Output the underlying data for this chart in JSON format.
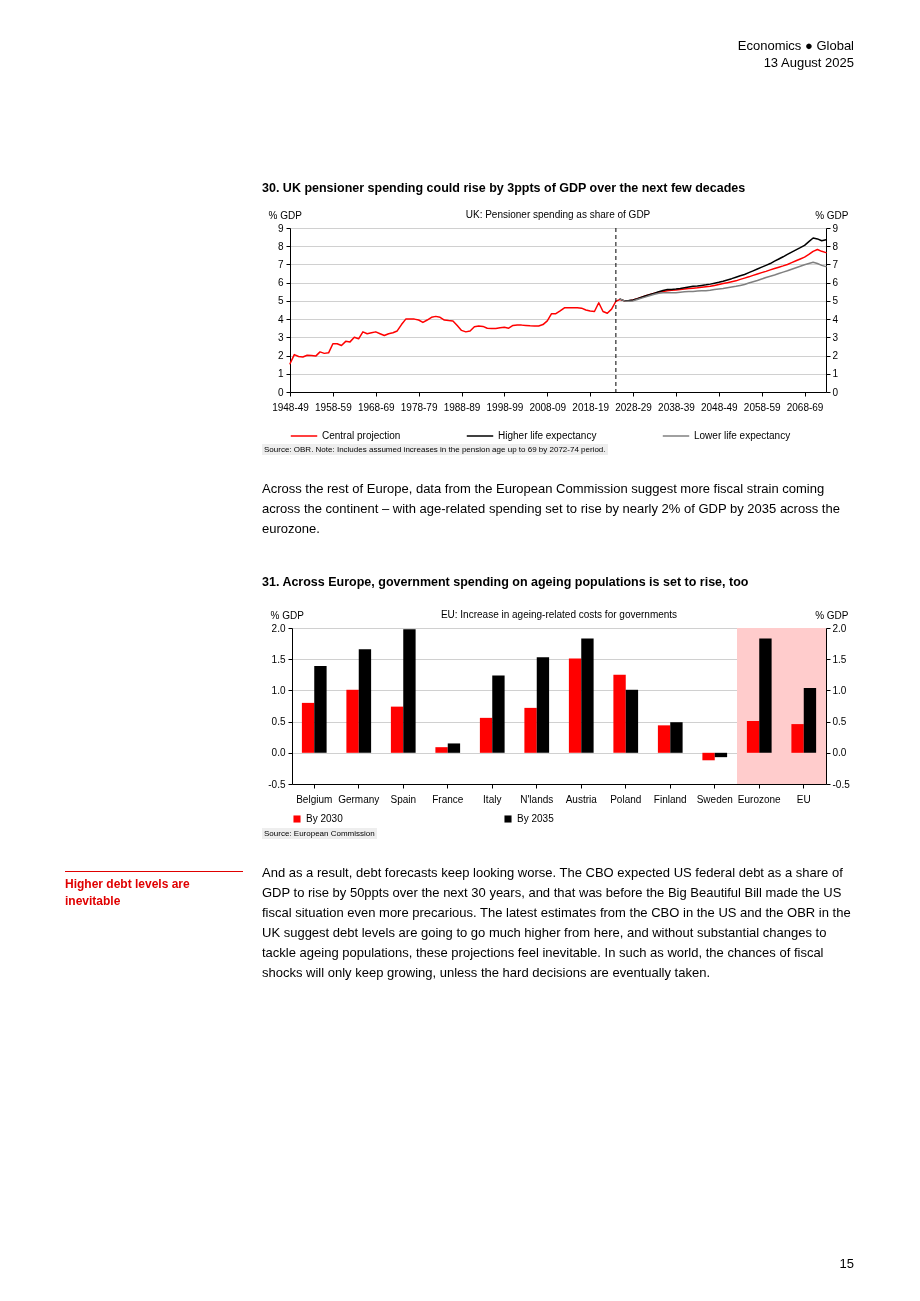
{
  "chart_data": [
    {
      "type": "line",
      "title": "30. UK pensioner spending could rise by 3ppts of GDP over the next few decades",
      "subtitle": "UK: Pensioner spending as share of GDP",
      "ylabel": "% GDP",
      "y2label": "% GDP",
      "annotations": [
        "Economics ● Global",
        "13 August 2025",
        "Source: OBR. Note: Includes assumed increases in the pension age up to 69 by 2072-74 period.",
        "Across the rest of Europe, data from the European Commission suggest more fiscal strain coming across the continent – with age-related spending set to rise by nearly 2% of GDP by 2035 across the eurozone."
      ],
      "categories": [
        "1948-49",
        null,
        null,
        null,
        null,
        null,
        null,
        null,
        null,
        null,
        "1958-59",
        null,
        null,
        null,
        null,
        null,
        null,
        null,
        null,
        null,
        "1968-69",
        null,
        null,
        null,
        null,
        null,
        null,
        null,
        null,
        null,
        "1978-79",
        null,
        null,
        null,
        null,
        null,
        null,
        null,
        null,
        null,
        "1988-89",
        null,
        null,
        null,
        null,
        null,
        null,
        null,
        null,
        null,
        "1998-99",
        null,
        null,
        null,
        null,
        null,
        null,
        null,
        null,
        null,
        "2008-09",
        null,
        null,
        null,
        null,
        null,
        null,
        null,
        null,
        null,
        "2018-19",
        null,
        null,
        null,
        null,
        null,
        null,
        null,
        null,
        null,
        "2028-29",
        null,
        null,
        null,
        null,
        null,
        null,
        null,
        null,
        null,
        "2038-39",
        null,
        null,
        null,
        null,
        null,
        null,
        null,
        null,
        null,
        "2048-49",
        null,
        null,
        null,
        null,
        null,
        null,
        null,
        null,
        null,
        "2058-59",
        null,
        null,
        null,
        null,
        null,
        null,
        null,
        null,
        null,
        "2068-69",
        null,
        null,
        null,
        null,
        null
      ],
      "ylim": [
        0,
        9
      ],
      "yticks": [
        0,
        1,
        2,
        3,
        4,
        5,
        6,
        7,
        8,
        9
      ],
      "y2lim": [
        0,
        9
      ],
      "y2ticks": [
        0,
        1,
        2,
        3,
        4,
        5,
        6,
        7,
        8,
        9
      ],
      "grid": "y",
      "legend": "bottom",
      "ref_lines": [
        {
          "axis": "x",
          "value": "2024-25",
          "line_style": "dashed",
          "color": "#000000"
        }
      ],
      "series": [
        {
          "name": "Central projection",
          "color": "#ff0000",
          "values": [
            1.55,
            2.05,
            1.95,
            1.92,
            2.02,
            2.0,
            1.97,
            2.2,
            2.12,
            2.15,
            2.65,
            2.65,
            2.55,
            2.78,
            2.75,
            3.0,
            2.92,
            3.3,
            3.2,
            3.25,
            3.3,
            3.2,
            3.1,
            3.2,
            3.25,
            3.35,
            3.7,
            4.0,
            4.0,
            4.0,
            3.95,
            3.82,
            3.95,
            4.1,
            4.15,
            4.1,
            3.95,
            3.92,
            3.9,
            3.65,
            3.38,
            3.3,
            3.35,
            3.58,
            3.62,
            3.6,
            3.5,
            3.48,
            3.48,
            3.52,
            3.55,
            3.5,
            3.65,
            3.68,
            3.67,
            3.65,
            3.63,
            3.62,
            3.62,
            3.7,
            3.9,
            4.3,
            4.3,
            4.45,
            4.62,
            4.62,
            4.62,
            4.62,
            4.6,
            4.5,
            4.45,
            4.42,
            4.9,
            4.42,
            4.32,
            4.55,
            4.98,
            5.08,
            5.0,
            5.0,
            5.05,
            5.12,
            5.2,
            5.28,
            5.35,
            5.42,
            5.48,
            5.52,
            5.55,
            5.58,
            5.6,
            5.62,
            5.65,
            5.68,
            5.7,
            5.72,
            5.75,
            5.78,
            5.8,
            5.85,
            5.9,
            5.95,
            6.0,
            6.05,
            6.1,
            6.18,
            6.25,
            6.32,
            6.4,
            6.48,
            6.55,
            6.62,
            6.7,
            6.78,
            6.85,
            6.92,
            7.0,
            7.1,
            7.2,
            7.3,
            7.4,
            7.55,
            7.72,
            7.82,
            7.72,
            7.65
          ]
        },
        {
          "name": "Higher life expectancy",
          "color": "#000000",
          "values": [
            null,
            null,
            null,
            null,
            null,
            null,
            null,
            null,
            null,
            null,
            null,
            null,
            null,
            null,
            null,
            null,
            null,
            null,
            null,
            null,
            null,
            null,
            null,
            null,
            null,
            null,
            null,
            null,
            null,
            null,
            null,
            null,
            null,
            null,
            null,
            null,
            null,
            null,
            null,
            null,
            null,
            null,
            null,
            null,
            null,
            null,
            null,
            null,
            null,
            null,
            null,
            null,
            null,
            null,
            null,
            null,
            null,
            null,
            null,
            null,
            null,
            null,
            null,
            null,
            null,
            null,
            null,
            null,
            null,
            null,
            null,
            null,
            null,
            null,
            null,
            null,
            null,
            5.1,
            5.0,
            5.02,
            5.05,
            5.12,
            5.2,
            5.28,
            5.35,
            5.42,
            5.5,
            5.57,
            5.62,
            5.63,
            5.65,
            5.68,
            5.72,
            5.76,
            5.8,
            5.82,
            5.85,
            5.88,
            5.92,
            5.97,
            6.02,
            6.08,
            6.15,
            6.22,
            6.3,
            6.38,
            6.45,
            6.55,
            6.65,
            6.75,
            6.85,
            6.95,
            7.05,
            7.18,
            7.3,
            7.42,
            7.55,
            7.68,
            7.8,
            7.92,
            8.05,
            8.25,
            8.45,
            8.4,
            8.3,
            8.35
          ]
        },
        {
          "name": "Lower life expectancy",
          "color": "#808080",
          "values": [
            null,
            null,
            null,
            null,
            null,
            null,
            null,
            null,
            null,
            null,
            null,
            null,
            null,
            null,
            null,
            null,
            null,
            null,
            null,
            null,
            null,
            null,
            null,
            null,
            null,
            null,
            null,
            null,
            null,
            null,
            null,
            null,
            null,
            null,
            null,
            null,
            null,
            null,
            null,
            null,
            null,
            null,
            null,
            null,
            null,
            null,
            null,
            null,
            null,
            null,
            null,
            null,
            null,
            null,
            null,
            null,
            null,
            null,
            null,
            null,
            null,
            null,
            null,
            null,
            null,
            null,
            null,
            null,
            null,
            null,
            null,
            null,
            null,
            null,
            null,
            null,
            null,
            5.1,
            5.0,
            4.98,
            5.0,
            5.08,
            5.15,
            5.22,
            5.3,
            5.36,
            5.42,
            5.44,
            5.45,
            5.45,
            5.45,
            5.48,
            5.5,
            5.51,
            5.52,
            5.54,
            5.55,
            5.56,
            5.58,
            5.62,
            5.65,
            5.68,
            5.72,
            5.76,
            5.8,
            5.85,
            5.9,
            5.98,
            6.05,
            6.12,
            6.2,
            6.28,
            6.35,
            6.42,
            6.5,
            6.58,
            6.65,
            6.74,
            6.82,
            6.9,
            6.98,
            7.05,
            7.12,
            7.05,
            6.95,
            6.88
          ]
        }
      ]
    },
    {
      "type": "bar",
      "title": "31. Across Europe, government spending on ageing populations is set to rise, too",
      "subtitle": "EU: Increase in ageing-related costs for governments",
      "ylabel": "% GDP",
      "y2label": "% GDP",
      "annotations": [
        "Source: European Commission",
        "Higher debt levels are inevitable",
        "And as a result, debt forecasts keep looking worse. The CBO expected US federal debt as a share of GDP to rise by 50ppts over the next 30 years, and that was before the Big Beautiful Bill made the US fiscal situation even more precarious. The latest estimates from the CBO in the US and the OBR in the UK suggest debt levels are going to go much higher from here, and without substantial changes to tackle ageing populations, these projections feel inevitable. In such as world, the chances of fiscal shocks will only keep growing, unless the hard decisions are eventually taken.",
        "15"
      ],
      "categories": [
        "Belgium",
        "Germany",
        "Spain",
        "France",
        "Italy",
        "N'lands",
        "Austria",
        "Poland",
        "Finland",
        "Sweden",
        "Eurozone",
        "EU"
      ],
      "ylim": [
        -0.5,
        2
      ],
      "yticks": [
        {
          "value": -0.5,
          "label": "-0.5"
        },
        {
          "value": 0,
          "label": "0.0"
        },
        {
          "value": 0.5,
          "label": "0.5"
        },
        {
          "value": 1,
          "label": "1.0"
        },
        {
          "value": 1.5,
          "label": "1.5"
        },
        {
          "value": 2,
          "label": "2.0"
        }
      ],
      "y2lim": [
        -0.5,
        2
      ],
      "y2ticks": [
        {
          "value": -0.5,
          "label": "-0.5"
        },
        {
          "value": 0,
          "label": "0.0"
        },
        {
          "value": 0.5,
          "label": "0.5"
        },
        {
          "value": 1,
          "label": "1.0"
        },
        {
          "value": 1.5,
          "label": "1.5"
        },
        {
          "value": 2,
          "label": "2.0"
        }
      ],
      "grid": "y",
      "legend": "bottom",
      "bands": [
        {
          "axis": "x",
          "from": "Eurozone",
          "to": "EU",
          "color": "#ffcccc"
        }
      ],
      "series": [
        {
          "name": "By 2030",
          "color": "#ff0000",
          "values": [
            0.8,
            1.01,
            0.74,
            0.09,
            0.56,
            0.72,
            1.51,
            1.25,
            0.44,
            -0.12,
            0.51,
            0.46
          ]
        },
        {
          "name": "By 2035",
          "color": "#000000",
          "values": [
            1.39,
            1.66,
            1.98,
            0.15,
            1.24,
            1.53,
            1.83,
            1.01,
            0.49,
            -0.07,
            1.83,
            1.04
          ]
        }
      ]
    }
  ]
}
